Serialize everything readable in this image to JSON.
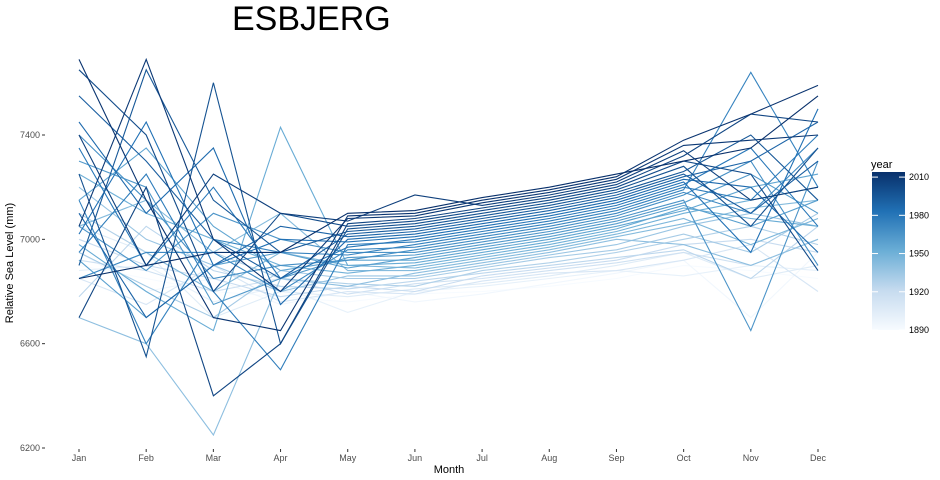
{
  "chart_data": {
    "type": "line",
    "title": "ESBJERG",
    "xlabel": "Month",
    "ylabel": "Relative Sea Level (mm)",
    "x_categories": [
      "Jan",
      "Feb",
      "Mar",
      "Apr",
      "May",
      "Jun",
      "Jul",
      "Aug",
      "Sep",
      "Oct",
      "Nov",
      "Dec"
    ],
    "y_ticks": [
      6200,
      6600,
      7000,
      7400
    ],
    "ylim": [
      6200,
      7700
    ],
    "grid": false,
    "legend": {
      "title": "year",
      "ticks": [
        1890,
        1920,
        1950,
        1980,
        2010
      ],
      "range": [
        1890,
        2014
      ],
      "placement": "right",
      "colors": [
        "#f7fbff",
        "#c6dbef",
        "#6baed6",
        "#2171b5",
        "#08306b"
      ]
    },
    "series": [
      {
        "year": 1890,
        "values": [
          6900,
          6850,
          6800,
          6780,
          6760,
          6790,
          6800,
          6820,
          6850,
          6900,
          6880,
          6850
        ]
      },
      {
        "year": 1894,
        "values": [
          6950,
          6800,
          6850,
          6750,
          6800,
          6760,
          6790,
          6830,
          6870,
          6920,
          6700,
          6950
        ]
      },
      {
        "year": 1900,
        "values": [
          6880,
          6900,
          6760,
          6820,
          6720,
          6800,
          6820,
          6850,
          6880,
          6860,
          6900,
          6880
        ]
      },
      {
        "year": 1905,
        "values": [
          7050,
          6950,
          6700,
          6800,
          6780,
          6810,
          6830,
          6860,
          6900,
          6950,
          6850,
          6900
        ]
      },
      {
        "year": 1910,
        "values": [
          6850,
          6750,
          6900,
          6760,
          6800,
          6790,
          6840,
          6870,
          6880,
          6920,
          6980,
          6800
        ]
      },
      {
        "year": 1915,
        "values": [
          6920,
          6880,
          6800,
          6850,
          6790,
          6830,
          6850,
          6880,
          6910,
          6950,
          6900,
          7000
        ]
      },
      {
        "year": 1920,
        "values": [
          7000,
          6900,
          6850,
          6780,
          6820,
          6800,
          6860,
          6890,
          6920,
          6980,
          7000,
          6950
        ]
      },
      {
        "year": 1924,
        "values": [
          6780,
          7050,
          6880,
          6820,
          6810,
          6840,
          6870,
          6900,
          6930,
          6960,
          6850,
          7050
        ]
      },
      {
        "year": 1928,
        "values": [
          7100,
          6950,
          6950,
          6850,
          6830,
          6820,
          6880,
          6910,
          6950,
          7000,
          7050,
          6980
        ]
      },
      {
        "year": 1932,
        "values": [
          6950,
          6820,
          6700,
          6880,
          6850,
          6850,
          6890,
          6930,
          6960,
          7020,
          6950,
          7100
        ]
      },
      {
        "year": 1936,
        "values": [
          7200,
          7000,
          6900,
          6800,
          6860,
          6860,
          6900,
          6940,
          6980,
          7050,
          7100,
          7050
        ]
      },
      {
        "year": 1940,
        "values": [
          6700,
          6600,
          6250,
          6850,
          6820,
          6870,
          6910,
          6950,
          7000,
          6980,
          6900,
          7000
        ]
      },
      {
        "year": 1943,
        "values": [
          7050,
          7150,
          6950,
          7100,
          6880,
          6880,
          6920,
          6960,
          7010,
          7060,
          7120,
          7150
        ]
      },
      {
        "year": 1946,
        "values": [
          6850,
          6950,
          6800,
          6950,
          6900,
          6890,
          6930,
          6970,
          7020,
          7080,
          6980,
          7080
        ]
      },
      {
        "year": 1950,
        "values": [
          7250,
          7100,
          7000,
          6900,
          6870,
          6900,
          6940,
          6980,
          7030,
          7100,
          7150,
          7200
        ]
      },
      {
        "year": 1953,
        "values": [
          6980,
          6800,
          6650,
          7430,
          6900,
          6910,
          6950,
          6990,
          7040,
          7120,
          7080,
          7050
        ]
      },
      {
        "year": 1956,
        "values": [
          7150,
          7350,
          7050,
          6880,
          6920,
          6920,
          6960,
          7000,
          7050,
          7110,
          7200,
          7250
        ]
      },
      {
        "year": 1959,
        "values": [
          6920,
          6700,
          6900,
          6950,
          6890,
          6930,
          6970,
          7010,
          7060,
          7130,
          7050,
          7150
        ]
      },
      {
        "year": 1962,
        "values": [
          7300,
          7200,
          6750,
          6850,
          6930,
          6940,
          6980,
          7020,
          7070,
          7140,
          7250,
          7100
        ]
      },
      {
        "year": 1965,
        "values": [
          7050,
          6880,
          7100,
          7000,
          6950,
          6950,
          6990,
          7030,
          7080,
          7150,
          6650,
          7300
        ]
      },
      {
        "year": 1968,
        "values": [
          7400,
          7150,
          6850,
          6900,
          6920,
          6960,
          7000,
          7040,
          7090,
          7170,
          7300,
          6900
        ]
      },
      {
        "year": 1971,
        "values": [
          6850,
          6950,
          6950,
          6800,
          6960,
          6970,
          7010,
          7050,
          7100,
          7180,
          7100,
          7350
        ]
      },
      {
        "year": 1974,
        "values": [
          7150,
          6600,
          7000,
          6950,
          6940,
          6980,
          7020,
          7060,
          7110,
          7190,
          7640,
          7200
        ]
      },
      {
        "year": 1977,
        "values": [
          6950,
          7250,
          6800,
          6500,
          6980,
          6990,
          7030,
          7070,
          7120,
          7200,
          7150,
          7400
        ]
      },
      {
        "year": 1980,
        "values": [
          7350,
          6900,
          7200,
          6850,
          6970,
          7000,
          7040,
          7080,
          7130,
          7210,
          7350,
          7050
        ]
      },
      {
        "year": 1983,
        "values": [
          7020,
          7450,
          6900,
          7000,
          6990,
          7010,
          7050,
          7090,
          7140,
          7220,
          6950,
          7500
        ]
      },
      {
        "year": 1986,
        "values": [
          7450,
          7100,
          7350,
          6750,
          7000,
          7020,
          7060,
          7100,
          7150,
          7230,
          7200,
          6950
        ]
      },
      {
        "year": 1989,
        "values": [
          7100,
          6700,
          6900,
          7050,
          7010,
          7030,
          7070,
          7110,
          7160,
          7240,
          7300,
          7450
        ]
      },
      {
        "year": 1992,
        "values": [
          7550,
          7300,
          7000,
          6850,
          7020,
          7040,
          7080,
          7120,
          7170,
          7250,
          7100,
          7300
        ]
      },
      {
        "year": 1995,
        "values": [
          6900,
          7650,
          7150,
          6950,
          7030,
          7050,
          7090,
          7130,
          7180,
          7260,
          7400,
          7150
        ]
      },
      {
        "year": 1998,
        "values": [
          7250,
          6550,
          7600,
          6600,
          7040,
          7060,
          7100,
          7140,
          7190,
          7280,
          7050,
          7350
        ]
      },
      {
        "year": 2001,
        "values": [
          7650,
          7400,
          6800,
          7100,
          7050,
          7070,
          7110,
          7150,
          7200,
          7300,
          7250,
          6880
        ]
      },
      {
        "year": 2004,
        "values": [
          6700,
          7200,
          6400,
          6600,
          7060,
          7080,
          7120,
          7160,
          7210,
          7320,
          7480,
          7450
        ]
      },
      {
        "year": 2007,
        "values": [
          7400,
          6900,
          7250,
          7100,
          7070,
          7170,
          7130,
          7170,
          7220,
          7340,
          7150,
          7200
        ]
      },
      {
        "year": 2010,
        "values": [
          7050,
          7690,
          7000,
          6800,
          7080,
          7090,
          7140,
          7180,
          7230,
          7360,
          7380,
          7400
        ]
      },
      {
        "year": 2012,
        "values": [
          7690,
          7150,
          6700,
          6650,
          7090,
          7100,
          7150,
          7190,
          7240,
          7380,
          7480,
          7590
        ]
      },
      {
        "year": 2014,
        "values": [
          6850,
          6900,
          6950,
          6950,
          7100,
          7110,
          7160,
          7200,
          7250,
          7300,
          7350,
          7550
        ]
      }
    ]
  }
}
